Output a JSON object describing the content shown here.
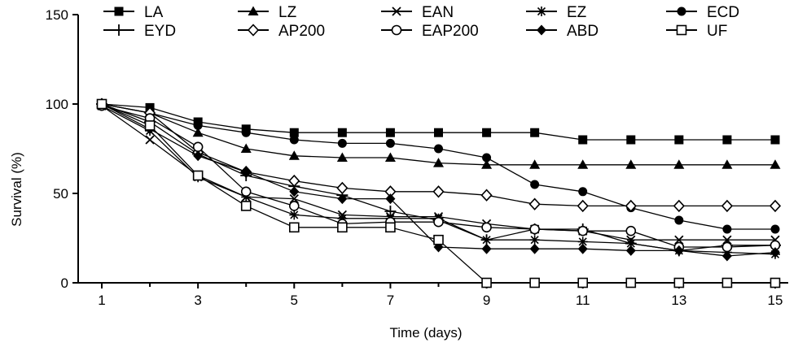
{
  "chart_data": {
    "type": "line",
    "xlabel": "Time (days)",
    "ylabel": "Survival (%)",
    "xlim": [
      0.5,
      15.3
    ],
    "ylim": [
      0,
      150
    ],
    "x_ticks": [
      1,
      3,
      5,
      7,
      9,
      11,
      13,
      15
    ],
    "y_ticks": [
      0,
      50,
      100,
      150
    ],
    "grid": false,
    "legend_position": "top",
    "x": [
      1,
      2,
      3,
      4,
      5,
      6,
      7,
      8,
      9,
      10,
      11,
      12,
      13,
      14,
      15
    ],
    "series": [
      {
        "name": "LA",
        "marker": "square-filled",
        "values": [
          100,
          98,
          90,
          86,
          84,
          84,
          84,
          84,
          84,
          84,
          80,
          80,
          80,
          80,
          80
        ]
      },
      {
        "name": "LZ",
        "marker": "triangle-filled",
        "values": [
          100,
          95,
          84,
          75,
          71,
          70,
          70,
          67,
          66,
          66,
          66,
          66,
          66,
          66,
          66
        ]
      },
      {
        "name": "EAN",
        "marker": "x",
        "values": [
          99,
          80,
          60,
          48,
          47,
          38,
          37,
          37,
          33,
          30,
          29,
          24,
          24,
          24,
          24
        ]
      },
      {
        "name": "EZ",
        "marker": "star",
        "values": [
          99,
          85,
          59,
          48,
          38,
          36,
          36,
          36,
          24,
          24,
          23,
          22,
          18,
          17,
          16
        ]
      },
      {
        "name": "ECD",
        "marker": "circle-filled",
        "values": [
          100,
          95,
          88,
          84,
          80,
          78,
          78,
          75,
          70,
          55,
          51,
          42,
          35,
          30,
          30
        ]
      },
      {
        "name": "EYD",
        "marker": "plus",
        "values": [
          100,
          90,
          72,
          60,
          54,
          49,
          40,
          35,
          24,
          30,
          30,
          22,
          18,
          21,
          21
        ]
      },
      {
        "name": "AP200",
        "marker": "diamond-open",
        "values": [
          100,
          95,
          73,
          62,
          57,
          53,
          51,
          51,
          49,
          44,
          43,
          43,
          43,
          43,
          43
        ]
      },
      {
        "name": "EAP200",
        "marker": "circle-open",
        "values": [
          99,
          92,
          76,
          51,
          43,
          33,
          34,
          34,
          31,
          30,
          29,
          29,
          20,
          20,
          21
        ]
      },
      {
        "name": "ABD",
        "marker": "diamond-filled",
        "values": [
          100,
          86,
          71,
          62,
          51,
          47,
          47,
          20,
          19,
          19,
          19,
          18,
          18,
          15,
          17
        ]
      },
      {
        "name": "UF",
        "marker": "square-open",
        "values": [
          100,
          88,
          60,
          43,
          31,
          31,
          31,
          24,
          0,
          0,
          0,
          0,
          0,
          0,
          0
        ]
      }
    ]
  }
}
